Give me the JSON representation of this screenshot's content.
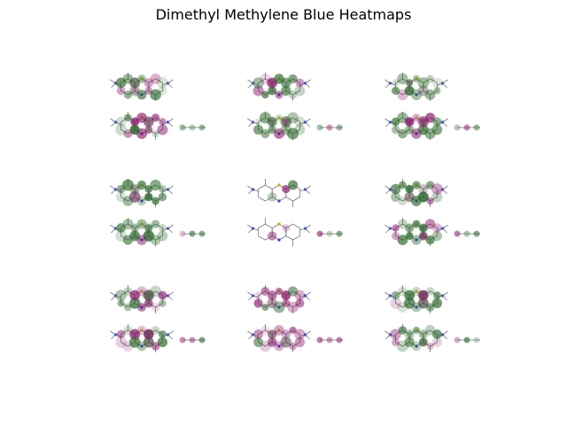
{
  "figure": {
    "title": "Dimethyl Methylene Blue Heatmaps"
  },
  "panels": [
    {
      "id": 1,
      "dominant": "mixed"
    },
    {
      "id": 2,
      "dominant": "mixed"
    },
    {
      "id": 3,
      "dominant": "green"
    },
    {
      "id": 4,
      "dominant": "green"
    },
    {
      "id": 5,
      "dominant": "sparse"
    },
    {
      "id": 6,
      "dominant": "green"
    },
    {
      "id": 7,
      "dominant": "mixed"
    },
    {
      "id": 8,
      "dominant": "purple"
    },
    {
      "id": 9,
      "dominant": "green"
    }
  ],
  "colors": {
    "positive": "#2e6b2e",
    "negative": "#8b1a6b",
    "bond": "#777777",
    "nitrogen": "#2b3bff",
    "sulfur": "#c8b400"
  }
}
